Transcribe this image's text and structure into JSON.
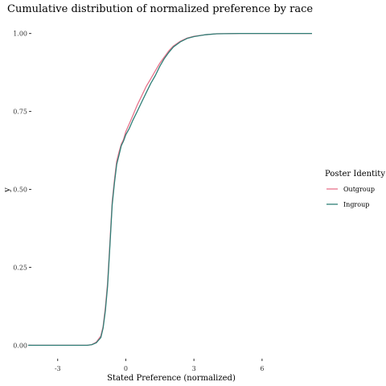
{
  "chart_data": {
    "type": "line",
    "title": "Cumulative distribution of normalized preference by race",
    "xlabel": "Stated Preference (normalized)",
    "ylabel": "y",
    "xlim": [
      -4.3,
      8.2
    ],
    "ylim": [
      -0.03,
      1.03
    ],
    "x_ticks": [
      -3,
      0,
      3,
      6
    ],
    "x_tick_labels": [
      "-3",
      "0",
      "3",
      "6"
    ],
    "y_ticks": [
      0,
      0.25,
      0.5,
      0.75,
      1.0
    ],
    "y_tick_labels": [
      "0.00",
      "0.25",
      "0.50",
      "0.75",
      "1.00"
    ],
    "grid": false,
    "legend": {
      "title": "Poster Identity",
      "position": "right"
    },
    "series": [
      {
        "name": "Outgroup",
        "color": "#e7748c",
        "x": [
          -4.3,
          -1.7,
          -1.5,
          -1.3,
          -1.1,
          -1.0,
          -0.9,
          -0.8,
          -0.7,
          -0.6,
          -0.5,
          -0.4,
          -0.3,
          -0.2,
          -0.1,
          0.0,
          0.15,
          0.3,
          0.5,
          0.7,
          0.9,
          1.1,
          1.3,
          1.5,
          1.7,
          1.9,
          2.1,
          2.4,
          2.7,
          3.0,
          3.5,
          4.0,
          5.0,
          8.2
        ],
        "y": [
          0.0,
          0.0,
          0.002,
          0.01,
          0.03,
          0.06,
          0.12,
          0.2,
          0.33,
          0.46,
          0.53,
          0.59,
          0.62,
          0.645,
          0.66,
          0.685,
          0.71,
          0.735,
          0.77,
          0.8,
          0.83,
          0.855,
          0.88,
          0.905,
          0.925,
          0.945,
          0.96,
          0.975,
          0.985,
          0.991,
          0.996,
          0.999,
          1.0,
          1.0
        ]
      },
      {
        "name": "Ingroup",
        "color": "#2f7f77",
        "x": [
          -4.3,
          -1.7,
          -1.5,
          -1.3,
          -1.1,
          -1.0,
          -0.9,
          -0.8,
          -0.7,
          -0.6,
          -0.5,
          -0.4,
          -0.3,
          -0.2,
          -0.1,
          0.0,
          0.15,
          0.3,
          0.5,
          0.7,
          0.9,
          1.1,
          1.3,
          1.5,
          1.7,
          1.9,
          2.1,
          2.4,
          2.7,
          3.0,
          3.5,
          4.0,
          5.0,
          8.2
        ],
        "y": [
          0.0,
          0.0,
          0.002,
          0.008,
          0.025,
          0.055,
          0.11,
          0.19,
          0.32,
          0.45,
          0.52,
          0.58,
          0.61,
          0.64,
          0.655,
          0.675,
          0.695,
          0.72,
          0.75,
          0.78,
          0.81,
          0.84,
          0.865,
          0.895,
          0.92,
          0.94,
          0.957,
          0.973,
          0.984,
          0.99,
          0.996,
          0.999,
          1.0,
          1.0
        ]
      }
    ]
  }
}
